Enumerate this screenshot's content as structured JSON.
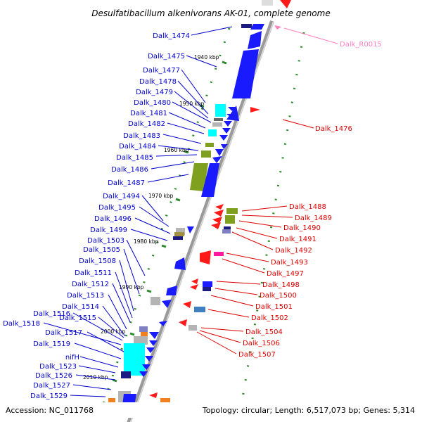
{
  "title": "Desulfatibacillum alkenivorans AK-01, complete genome",
  "footer": {
    "accession": "Accession: NC_011768",
    "stats": "Topology: circular; Length: 6,517,073 bp; Genes: 5,314"
  },
  "colors": {
    "left_labels": "#0000cc",
    "right_labels": "#dd0000",
    "rna_label": "#ff80c0",
    "cds_blue": "#1a1aff",
    "cds_red": "#ff1a1a",
    "cyan": "#00ffff",
    "olive": "#7f9f1f",
    "grey": "#b4b4b4",
    "backbone": "#a0a0a0",
    "tick": "#2b8a2b"
  },
  "scale_labels": [
    "1940 kbp",
    "1950 kbp",
    "1960 kbp",
    "1970 kbp",
    "1980 kbp",
    "1990 kbp",
    "2000 kbp",
    "2010 kbp"
  ],
  "left_genes": [
    "Dalk_1474",
    "Dalk_1475",
    "Dalk_1477",
    "Dalk_1478",
    "Dalk_1479",
    "Dalk_1480",
    "Dalk_1481",
    "Dalk_1482",
    "Dalk_1483",
    "Dalk_1484",
    "Dalk_1485",
    "Dalk_1486",
    "Dalk_1487",
    "Dalk_1494",
    "Dalk_1495",
    "Dalk_1496",
    "Dalk_1499",
    "Dalk_1503",
    "Dalk_1505",
    "Dalk_1508",
    "Dalk_1511",
    "Dalk_1512",
    "Dalk_1513",
    "Dalk_1514",
    "Dalk_1515",
    "Dalk_1516",
    "Dalk_1518",
    "Dalk_1517",
    "Dalk_1519",
    "nifH",
    "Dalk_1523",
    "Dalk_1526",
    "Dalk_1527",
    "Dalk_1529"
  ],
  "right_genes": [
    "Dalk_R0015",
    "Dalk_1476",
    "Dalk_1488",
    "Dalk_1489",
    "Dalk_1490",
    "Dalk_1491",
    "Dalk_1492",
    "Dalk_1493",
    "Dalk_1497",
    "Dalk_1498",
    "Dalk_1500",
    "Dalk_1501",
    "Dalk_1502",
    "Dalk_1504",
    "Dalk_1506",
    "Dalk_1507"
  ]
}
